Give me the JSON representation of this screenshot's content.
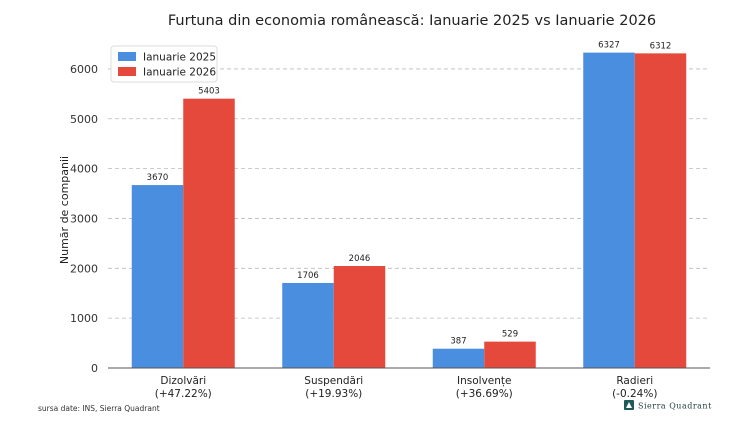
{
  "chart_data": {
    "type": "bar",
    "title": "Furtuna din economia românească: Ianuarie 2025 vs Ianuarie 2026",
    "xlabel": "",
    "ylabel": "Număr de companii",
    "categories": [
      "Dizolvări",
      "Suspendări",
      "Insolvențe",
      "Radieri"
    ],
    "category_changes": [
      "(+47.22%)",
      "(+19.93%)",
      "(+36.69%)",
      "(-0.24%)"
    ],
    "series": [
      {
        "name": "Ianuarie 2025",
        "color": "#4a8fdf",
        "values": [
          3670,
          1706,
          387,
          6327
        ]
      },
      {
        "name": "Ianuarie 2026",
        "color": "#e5493b",
        "values": [
          5403,
          2046,
          529,
          6312
        ]
      }
    ],
    "ylim": [
      0,
      6500
    ],
    "yticks": [
      0,
      1000,
      2000,
      3000,
      4000,
      5000,
      6000
    ],
    "grid": true,
    "legend_position": "top-left"
  },
  "footer": {
    "source": "sursa date: INS, Sierra Quadrant",
    "brand": "Sierra Quadrant",
    "brand_icon": "sierra-quadrant-logo"
  }
}
